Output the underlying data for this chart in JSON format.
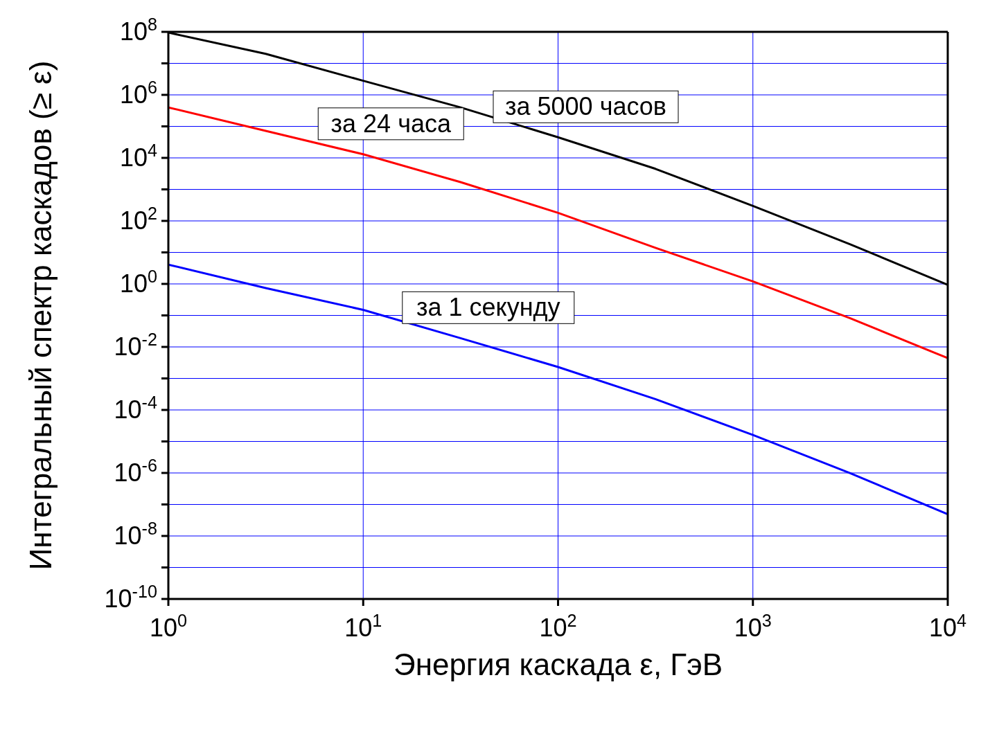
{
  "chart_data": {
    "type": "line",
    "xlabel": "Энергия каскада ε, ГэВ",
    "ylabel": "Интегральный спектр каскадов (≥ ε)",
    "x": [
      1,
      3.16,
      10,
      31.6,
      100,
      316,
      1000,
      3160,
      10000
    ],
    "series": [
      {
        "name": "за 5000 часов",
        "color": "#000000",
        "values": [
          95000000.0,
          20000000.0,
          2800000.0,
          400000.0,
          45000.0,
          4500.0,
          300,
          18,
          0.93
        ]
      },
      {
        "name": "за 24 часа",
        "color": "#ff0000",
        "values": [
          400000.0,
          72000.0,
          13000.0,
          1700.0,
          180,
          14,
          1.2,
          0.081,
          0.0044
        ]
      },
      {
        "name": "за 1 секунду",
        "color": "#0000ff",
        "values": [
          4.1,
          0.74,
          0.15,
          0.019,
          0.0023,
          0.00022,
          1.6e-05,
          9.8e-07,
          4.9e-08
        ]
      }
    ],
    "log": "xy",
    "xlim": [
      1,
      10000
    ],
    "xticks": [
      {
        "value": 1,
        "label": "10$^{0}$"
      },
      {
        "value": 10,
        "label": "10$^{1}$"
      },
      {
        "value": 100,
        "label": "10$^{2}$"
      },
      {
        "value": 1000,
        "label": "10$^{3}$"
      },
      {
        "value": 10000,
        "label": "10$^{4}$"
      }
    ],
    "ylim": [
      1e-10,
      100000000.0
    ],
    "yticks": [
      {
        "value": 1e-10,
        "label": "10$^{-10}$"
      },
      {
        "value": 1e-09,
        "label": null
      },
      {
        "value": 1e-08,
        "label": "10$^{-8}$"
      },
      {
        "value": 1e-07,
        "label": null
      },
      {
        "value": 1e-06,
        "label": "10$^{-6}$"
      },
      {
        "value": 1e-05,
        "label": null
      },
      {
        "value": 0.0001,
        "label": "10$^{-4}$"
      },
      {
        "value": 0.001,
        "label": null
      },
      {
        "value": 0.01,
        "label": "10$^{-2}$"
      },
      {
        "value": 0.1,
        "label": null
      },
      {
        "value": 1,
        "label": "10$^{0}$"
      },
      {
        "value": 10,
        "label": null
      },
      {
        "value": 100,
        "label": "10$^{2}$"
      },
      {
        "value": 1000,
        "label": null
      },
      {
        "value": 10000,
        "label": "10$^{4}$"
      },
      {
        "value": 100000,
        "label": null
      },
      {
        "value": 1000000,
        "label": "10$^{6}$"
      },
      {
        "value": 10000000,
        "label": null
      },
      {
        "value": 100000000,
        "label": "10$^{8}$"
      }
    ],
    "grid": true,
    "legend": false,
    "line_style": "solid",
    "marker": "none"
  }
}
